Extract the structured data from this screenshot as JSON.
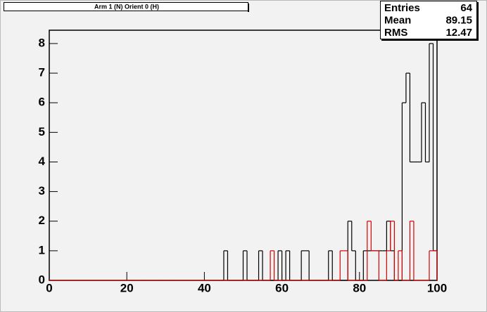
{
  "chart_data": {
    "type": "histogram",
    "title": "Arm 1 (N) Orient 0 (H)",
    "bins": [
      0,
      1,
      2,
      3,
      4,
      5,
      6,
      7,
      8,
      9,
      10,
      11,
      12,
      13,
      14,
      15,
      16,
      17,
      18,
      19,
      20,
      21,
      22,
      23,
      24,
      25,
      26,
      27,
      28,
      29,
      30,
      31,
      32,
      33,
      34,
      35,
      36,
      37,
      38,
      39,
      40,
      41,
      42,
      43,
      44,
      45,
      46,
      47,
      48,
      49,
      50,
      51,
      52,
      53,
      54,
      55,
      56,
      57,
      58,
      59,
      60,
      61,
      62,
      63,
      64,
      65,
      66,
      67,
      68,
      69,
      70,
      71,
      72,
      73,
      74,
      75,
      76,
      77,
      78,
      79,
      80,
      81,
      82,
      83,
      84,
      85,
      86,
      87,
      88,
      89,
      90,
      91,
      92,
      93,
      94,
      95,
      96,
      97,
      98,
      99,
      100
    ],
    "series": [
      {
        "color": "#000000",
        "values": [
          0,
          0,
          0,
          0,
          0,
          0,
          0,
          0,
          0,
          0,
          0,
          0,
          0,
          0,
          0,
          0,
          0,
          0,
          0,
          0,
          0,
          0,
          0,
          0,
          0,
          0,
          0,
          0,
          0,
          0,
          0,
          0,
          0,
          0,
          0,
          0,
          0,
          0,
          0,
          0,
          0,
          0,
          0,
          0,
          0,
          1,
          0,
          0,
          0,
          0,
          1,
          0,
          0,
          0,
          1,
          0,
          0,
          0,
          0,
          1,
          0,
          1,
          0,
          0,
          0,
          1,
          1,
          0,
          0,
          0,
          0,
          0,
          1,
          0,
          0,
          0,
          0,
          2,
          1,
          0,
          0,
          1,
          1,
          1,
          1,
          1,
          1,
          2,
          1,
          0,
          0,
          6,
          7,
          4,
          4,
          4,
          6,
          4,
          8,
          1
        ]
      },
      {
        "color": "#d40000",
        "values": [
          0,
          0,
          0,
          0,
          0,
          0,
          0,
          0,
          0,
          0,
          0,
          0,
          0,
          0,
          0,
          0,
          0,
          0,
          0,
          0,
          0,
          0,
          0,
          0,
          0,
          0,
          0,
          0,
          0,
          0,
          0,
          0,
          0,
          0,
          0,
          0,
          0,
          0,
          0,
          0,
          0,
          0,
          0,
          0,
          0,
          0,
          0,
          0,
          0,
          0,
          0,
          0,
          0,
          0,
          0,
          0,
          0,
          1,
          0,
          0,
          0,
          0,
          0,
          0,
          0,
          0,
          0,
          0,
          0,
          0,
          0,
          0,
          0,
          0,
          0,
          1,
          1,
          0,
          0,
          0,
          0,
          0,
          2,
          1,
          1,
          0,
          0,
          1,
          2,
          0,
          1,
          0,
          0,
          2,
          0,
          0,
          0,
          0,
          1,
          1
        ]
      }
    ],
    "xlim": [
      0,
      100
    ],
    "xticks": [
      0,
      20,
      40,
      60,
      80,
      100
    ],
    "ylim": [
      0,
      8.45
    ],
    "yticks": [
      0,
      1,
      2,
      3,
      4,
      5,
      6,
      7,
      8
    ],
    "stats": {
      "labels": [
        "Entries",
        "Mean",
        "RMS"
      ],
      "values": [
        64,
        89.15,
        12.47
      ]
    }
  }
}
